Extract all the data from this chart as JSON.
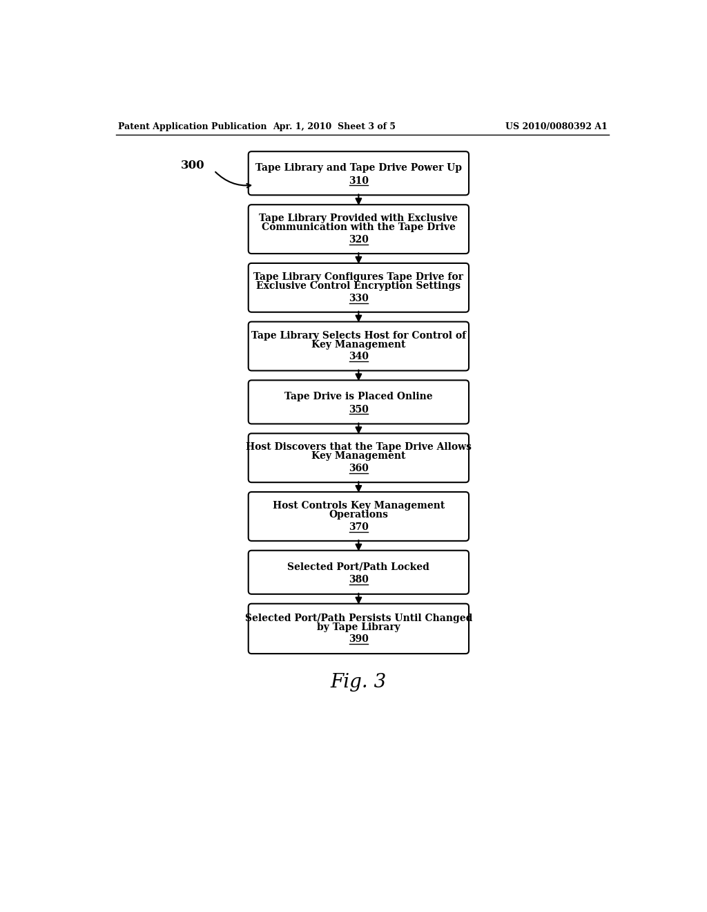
{
  "title_left": "Patent Application Publication",
  "title_mid": "Apr. 1, 2010  Sheet 3 of 5",
  "title_right": "US 2010/0080392 A1",
  "fig_label": "Fig. 3",
  "label_300": "300",
  "boxes": [
    {
      "id": "310",
      "lines": [
        "Tape Library and Tape Drive Power Up"
      ],
      "number": "310"
    },
    {
      "id": "320",
      "lines": [
        "Tape Library Provided with Exclusive",
        "Communication with the Tape Drive"
      ],
      "number": "320"
    },
    {
      "id": "330",
      "lines": [
        "Tape Library Configures Tape Drive for",
        "Exclusive Control Encryption Settings"
      ],
      "number": "330"
    },
    {
      "id": "340",
      "lines": [
        "Tape Library Selects Host for Control of",
        "Key Management"
      ],
      "number": "340"
    },
    {
      "id": "350",
      "lines": [
        "Tape Drive is Placed Online"
      ],
      "number": "350"
    },
    {
      "id": "360",
      "lines": [
        "Host Discovers that the Tape Drive Allows",
        "Key Management"
      ],
      "number": "360"
    },
    {
      "id": "370",
      "lines": [
        "Host Controls Key Management",
        "Operations"
      ],
      "number": "370"
    },
    {
      "id": "380",
      "lines": [
        "Selected Port/Path Locked"
      ],
      "number": "380"
    },
    {
      "id": "390",
      "lines": [
        "Selected Port/Path Persists Until Changed",
        "by Tape Library"
      ],
      "number": "390"
    }
  ],
  "bg_color": "#ffffff",
  "box_edge_color": "#000000",
  "box_fill_color": "#ffffff",
  "text_color": "#000000",
  "arrow_color": "#000000"
}
